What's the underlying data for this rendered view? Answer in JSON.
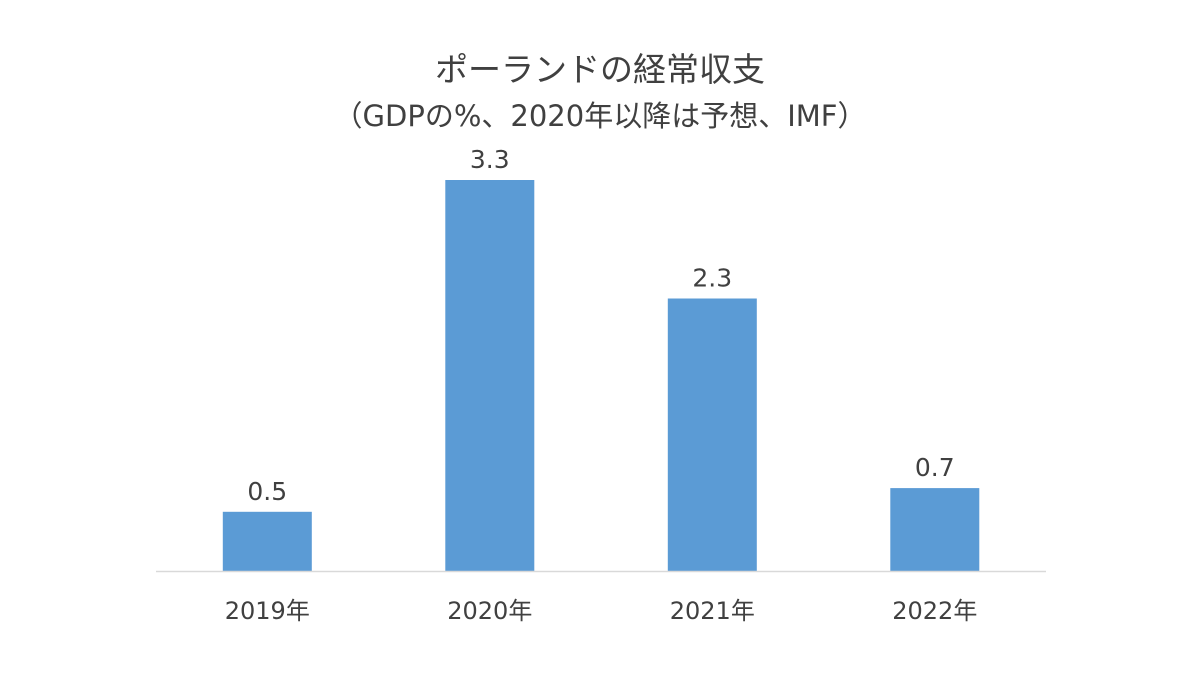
{
  "chart_data": {
    "type": "bar",
    "title": "ポーランドの経常収支",
    "subtitle": "（GDPの%、2020年以降は予想、IMF）",
    "categories": [
      "2019年",
      "2020年",
      "2021年",
      "2022年"
    ],
    "values": [
      0.5,
      3.3,
      2.3,
      0.7
    ],
    "value_labels": [
      "0.5",
      "3.3",
      "2.3",
      "0.7"
    ],
    "xlabel": "",
    "ylabel": "",
    "ylim": [
      0,
      3.3
    ],
    "grid": false,
    "legend": "none"
  },
  "colors": {
    "bar": "#5b9bd5",
    "axis": "#d9d9d9",
    "text": "#404040"
  }
}
